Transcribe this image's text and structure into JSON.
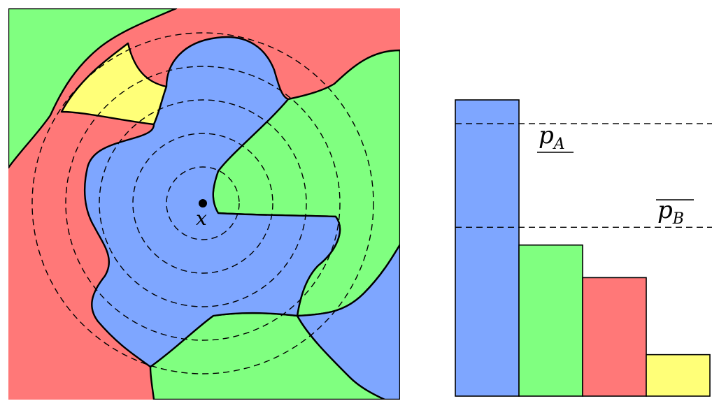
{
  "colors": {
    "blue": "#7ea6ff",
    "green": "#80ff80",
    "red": "#ff7878",
    "yellow": "#ffff78"
  },
  "point": {
    "label": "x"
  },
  "bars": [
    {
      "color": "blue",
      "value": 1.0
    },
    {
      "color": "green",
      "value": 0.51
    },
    {
      "color": "red",
      "value": 0.4
    },
    {
      "color": "yellow",
      "value": 0.14
    }
  ],
  "thresholds": {
    "pA": {
      "symbol": "p",
      "subscript": "A",
      "level": 0.92
    },
    "pB": {
      "symbol": "p",
      "subscript": "B",
      "level": 0.57
    }
  }
}
